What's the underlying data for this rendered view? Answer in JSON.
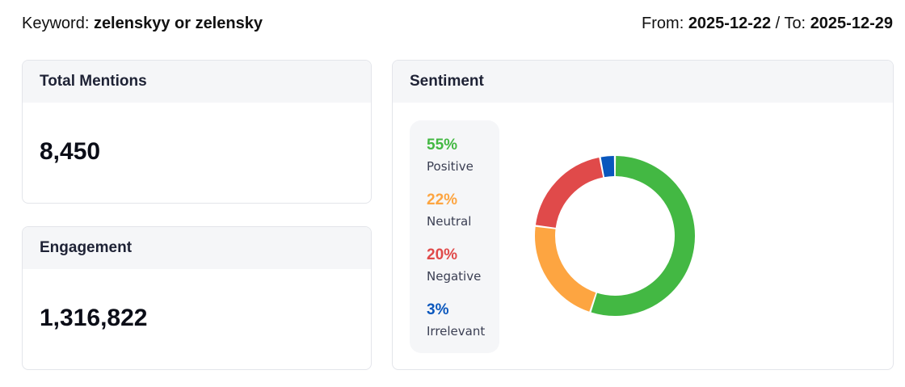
{
  "header": {
    "keyword_label": "Keyword:",
    "keyword": "zelenskyy or zelensky",
    "from_label": "From:",
    "from": "2025-12-22",
    "to_label": "To:",
    "to": "2025-12-29"
  },
  "total_mentions": {
    "title": "Total Mentions",
    "value": "8,450"
  },
  "engagement": {
    "title": "Engagement",
    "value": "1,316,822"
  },
  "sentiment": {
    "title": "Sentiment"
  },
  "chart_data": {
    "type": "pie",
    "categories": [
      "Positive",
      "Neutral",
      "Negative",
      "Irrelevant"
    ],
    "values": [
      55,
      22,
      20,
      3
    ],
    "labels": [
      "55%",
      "22%",
      "20%",
      "3%"
    ],
    "colors": [
      "#43b843",
      "#fda541",
      "#e04a4a",
      "#0a57bd"
    ],
    "donut": true,
    "legend": "left"
  }
}
